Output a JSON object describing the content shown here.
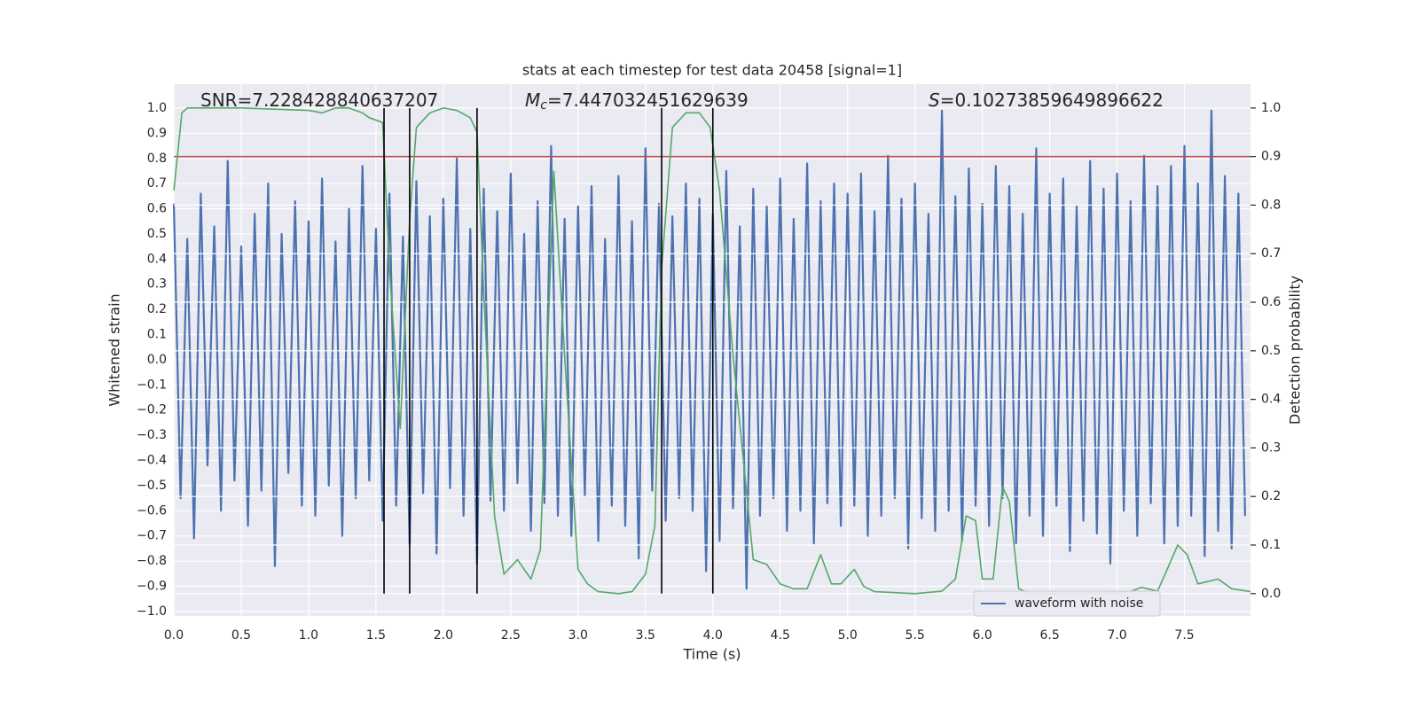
{
  "chart_data": {
    "type": "line",
    "title": "stats at each timestep for test data 20458 [signal=1]",
    "x_label": "Time (s)",
    "y_label": "Whitened strain",
    "y2_label": "Detection probability",
    "annotations": [
      {
        "text": "SNR=7.228428840637207"
      },
      {
        "symbol": "M",
        "sub": "c",
        "text": "=7.447032451629639"
      },
      {
        "symbol": "S",
        "text": "=0.10273859649896622"
      }
    ],
    "xlim": [
      0,
      7.99
    ],
    "ylim": [
      -1.018,
      1.095
    ],
    "y2lim": [
      -0.046,
      1.049
    ],
    "xticks": [
      {
        "value": 0,
        "label": "0.0"
      },
      {
        "value": 0.5,
        "label": "0.5"
      },
      {
        "value": 1,
        "label": "1.0"
      },
      {
        "value": 1.5,
        "label": "1.5"
      },
      {
        "value": 2,
        "label": "2.0"
      },
      {
        "value": 2.5,
        "label": "2.5"
      },
      {
        "value": 3,
        "label": "3.0"
      },
      {
        "value": 3.5,
        "label": "3.5"
      },
      {
        "value": 4,
        "label": "4.0"
      },
      {
        "value": 4.5,
        "label": "4.5"
      },
      {
        "value": 5,
        "label": "5.0"
      },
      {
        "value": 5.5,
        "label": "5.5"
      },
      {
        "value": 6,
        "label": "6.0"
      },
      {
        "value": 6.5,
        "label": "6.5"
      },
      {
        "value": 7,
        "label": "7.0"
      },
      {
        "value": 7.5,
        "label": "7.5"
      }
    ],
    "yticks": [
      {
        "value": -1,
        "label": "−1.0"
      },
      {
        "value": -0.9,
        "label": "−0.9"
      },
      {
        "value": -0.8,
        "label": "−0.8"
      },
      {
        "value": -0.7,
        "label": "−0.7"
      },
      {
        "value": -0.6,
        "label": "−0.6"
      },
      {
        "value": -0.5,
        "label": "−0.5"
      },
      {
        "value": -0.4,
        "label": "−0.4"
      },
      {
        "value": -0.3,
        "label": "−0.3"
      },
      {
        "value": -0.2,
        "label": "−0.2"
      },
      {
        "value": -0.1,
        "label": "−0.1"
      },
      {
        "value": 0,
        "label": "0.0"
      },
      {
        "value": 0.1,
        "label": "0.1"
      },
      {
        "value": 0.2,
        "label": "0.2"
      },
      {
        "value": 0.3,
        "label": "0.3"
      },
      {
        "value": 0.4,
        "label": "0.4"
      },
      {
        "value": 0.5,
        "label": "0.5"
      },
      {
        "value": 0.6,
        "label": "0.6"
      },
      {
        "value": 0.7,
        "label": "0.7"
      },
      {
        "value": 0.8,
        "label": "0.8"
      },
      {
        "value": 0.9,
        "label": "0.9"
      },
      {
        "value": 1,
        "label": "1.0"
      }
    ],
    "y2ticks": [
      {
        "value": 0,
        "label": "0.0"
      },
      {
        "value": 0.1,
        "label": "0.1"
      },
      {
        "value": 0.2,
        "label": "0.2"
      },
      {
        "value": 0.3,
        "label": "0.3"
      },
      {
        "value": 0.4,
        "label": "0.4"
      },
      {
        "value": 0.5,
        "label": "0.5"
      },
      {
        "value": 0.6,
        "label": "0.6"
      },
      {
        "value": 0.7,
        "label": "0.7"
      },
      {
        "value": 0.8,
        "label": "0.8"
      },
      {
        "value": 0.9,
        "label": "0.9"
      },
      {
        "value": 1,
        "label": "1.0"
      }
    ],
    "grid": true,
    "legend": "lower right",
    "series": [
      {
        "name": "waveform with noise",
        "color": "#4c72b0",
        "x": [
          0,
          0.05,
          0.1,
          0.15,
          0.2,
          0.25,
          0.3,
          0.35,
          0.4,
          0.45,
          0.5,
          0.55,
          0.6,
          0.65,
          0.7,
          0.75,
          0.8,
          0.85,
          0.9,
          0.95,
          1,
          1.05,
          1.1,
          1.15,
          1.2,
          1.25,
          1.3,
          1.35,
          1.4,
          1.45,
          1.5,
          1.55,
          1.6,
          1.65,
          1.7,
          1.75,
          1.8,
          1.85,
          1.9,
          1.95,
          2,
          2.05,
          2.1,
          2.15,
          2.2,
          2.25,
          2.3,
          2.35,
          2.4,
          2.45,
          2.5,
          2.55,
          2.6,
          2.65,
          2.7,
          2.75,
          2.8,
          2.85,
          2.9,
          2.95,
          3,
          3.05,
          3.1,
          3.15,
          3.2,
          3.25,
          3.3,
          3.35,
          3.4,
          3.45,
          3.5,
          3.55,
          3.6,
          3.65,
          3.7,
          3.75,
          3.8,
          3.85,
          3.9,
          3.95,
          4,
          4.05,
          4.1,
          4.15,
          4.2,
          4.25,
          4.3,
          4.35,
          4.4,
          4.45,
          4.5,
          4.55,
          4.6,
          4.65,
          4.7,
          4.75,
          4.8,
          4.85,
          4.9,
          4.95,
          5,
          5.05,
          5.1,
          5.15,
          5.2,
          5.25,
          5.3,
          5.35,
          5.4,
          5.45,
          5.5,
          5.55,
          5.6,
          5.65,
          5.7,
          5.75,
          5.8,
          5.85,
          5.9,
          5.95,
          6,
          6.05,
          6.1,
          6.15,
          6.2,
          6.25,
          6.3,
          6.35,
          6.4,
          6.45,
          6.5,
          6.55,
          6.6,
          6.65,
          6.7,
          6.75,
          6.8,
          6.85,
          6.9,
          6.95,
          7,
          7.05,
          7.1,
          7.15,
          7.2,
          7.25,
          7.3,
          7.35,
          7.4,
          7.45,
          7.5,
          7.55,
          7.6,
          7.65,
          7.7,
          7.75,
          7.8,
          7.85,
          7.9,
          7.95
        ],
        "values": [
          0.62,
          -0.55,
          0.48,
          -0.71,
          0.66,
          -0.42,
          0.53,
          -0.6,
          0.79,
          -0.48,
          0.45,
          -0.66,
          0.58,
          -0.52,
          0.7,
          -0.82,
          0.5,
          -0.45,
          0.63,
          -0.58,
          0.55,
          -0.62,
          0.72,
          -0.5,
          0.47,
          -0.7,
          0.6,
          -0.55,
          0.77,
          -0.48,
          0.52,
          -0.64,
          0.66,
          -0.58,
          0.49,
          -0.74,
          0.71,
          -0.53,
          0.57,
          -0.77,
          0.64,
          -0.51,
          0.8,
          -0.62,
          0.52,
          -0.81,
          0.68,
          -0.56,
          0.59,
          -0.6,
          0.74,
          -0.49,
          0.5,
          -0.68,
          0.63,
          -0.57,
          0.85,
          -0.62,
          0.56,
          -0.7,
          0.61,
          -0.54,
          0.69,
          -0.72,
          0.48,
          -0.58,
          0.73,
          -0.66,
          0.55,
          -0.79,
          0.84,
          -0.52,
          0.62,
          -0.64,
          0.57,
          -0.55,
          0.7,
          -0.6,
          0.64,
          -0.84,
          0.58,
          -0.72,
          0.75,
          -0.59,
          0.53,
          -0.91,
          0.68,
          -0.62,
          0.61,
          -0.55,
          0.72,
          -0.68,
          0.56,
          -0.6,
          0.78,
          -0.73,
          0.63,
          -0.57,
          0.7,
          -0.66,
          0.66,
          -0.58,
          0.74,
          -0.7,
          0.59,
          -0.62,
          0.81,
          -0.55,
          0.64,
          -0.75,
          0.7,
          -0.63,
          0.58,
          -0.68,
          0.99,
          -0.6,
          0.65,
          -0.72,
          0.76,
          -0.58,
          0.62,
          -0.66,
          0.77,
          -0.55,
          0.69,
          -0.73,
          0.58,
          -0.62,
          0.84,
          -0.7,
          0.66,
          -0.58,
          0.72,
          -0.76,
          0.61,
          -0.64,
          0.79,
          -0.69,
          0.68,
          -0.81,
          0.74,
          -0.6,
          0.63,
          -0.7,
          0.81,
          -0.57,
          0.69,
          -0.73,
          0.77,
          -0.66,
          0.85,
          -0.62,
          0.7,
          -0.78,
          0.99,
          -0.68,
          0.73,
          -0.75,
          0.66,
          -0.62
        ]
      },
      {
        "color": "#55a868",
        "axis": "y2",
        "x": [
          0,
          0.06,
          0.1,
          0.5,
          1.0,
          1.1,
          1.2,
          1.3,
          1.4,
          1.45,
          1.55,
          1.6,
          1.68,
          1.75,
          1.8,
          1.9,
          2.0,
          2.1,
          2.2,
          2.25,
          2.3,
          2.38,
          2.45,
          2.55,
          2.65,
          2.72,
          2.82,
          2.9,
          3.0,
          3.07,
          3.15,
          3.3,
          3.4,
          3.5,
          3.57,
          3.62,
          3.7,
          3.8,
          3.9,
          3.98,
          4.05,
          4.15,
          4.3,
          4.4,
          4.5,
          4.6,
          4.7,
          4.8,
          4.88,
          4.95,
          5.05,
          5.12,
          5.2,
          5.5,
          5.7,
          5.8,
          5.88,
          5.95,
          6.0,
          6.08,
          6.15,
          6.2,
          6.27,
          6.35,
          6.7,
          7.1,
          7.18,
          7.3,
          7.38,
          7.45,
          7.52,
          7.6,
          7.75,
          7.85,
          7.99
        ],
        "values": [
          0.83,
          0.99,
          1.0,
          1.0,
          0.995,
          0.99,
          1.0,
          1.0,
          0.99,
          0.98,
          0.97,
          0.67,
          0.34,
          0.77,
          0.96,
          0.99,
          1.0,
          0.995,
          0.98,
          0.95,
          0.62,
          0.16,
          0.04,
          0.07,
          0.03,
          0.09,
          0.87,
          0.49,
          0.05,
          0.02,
          0.004,
          0.0,
          0.004,
          0.04,
          0.14,
          0.67,
          0.96,
          0.99,
          0.99,
          0.96,
          0.83,
          0.49,
          0.07,
          0.06,
          0.02,
          0.01,
          0.01,
          0.08,
          0.02,
          0.02,
          0.05,
          0.015,
          0.004,
          0.0,
          0.005,
          0.03,
          0.16,
          0.15,
          0.03,
          0.03,
          0.22,
          0.19,
          0.01,
          0.0,
          0.0,
          0.004,
          0.013,
          0.005,
          0.055,
          0.1,
          0.08,
          0.02,
          0.03,
          0.01,
          0.004
        ]
      }
    ],
    "threshold": {
      "value": 0.9,
      "axis": "y2",
      "color": "#c44e52"
    },
    "vlines": {
      "x": [
        1.56,
        1.75,
        2.25,
        3.62,
        4.0
      ],
      "span": [
        0,
        1
      ],
      "axis": "y2",
      "color": "#000000"
    }
  }
}
